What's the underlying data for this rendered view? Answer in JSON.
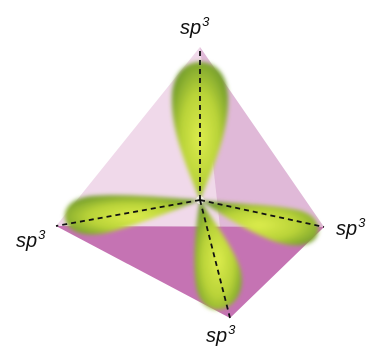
{
  "labels": {
    "top": {
      "base": "sp",
      "exp": "3"
    },
    "left": {
      "base": "sp",
      "exp": "3"
    },
    "right": {
      "base": "sp",
      "exp": "3"
    },
    "bottom": {
      "base": "sp",
      "exp": "3"
    }
  },
  "colors": {
    "face_back": "#f2e1ee",
    "face_right": "#ddb0d2",
    "face_bottom": "#c572b2",
    "lobe_light": "#d9e84a",
    "lobe_dark": "#6f9a2a",
    "axis": "#111111"
  }
}
